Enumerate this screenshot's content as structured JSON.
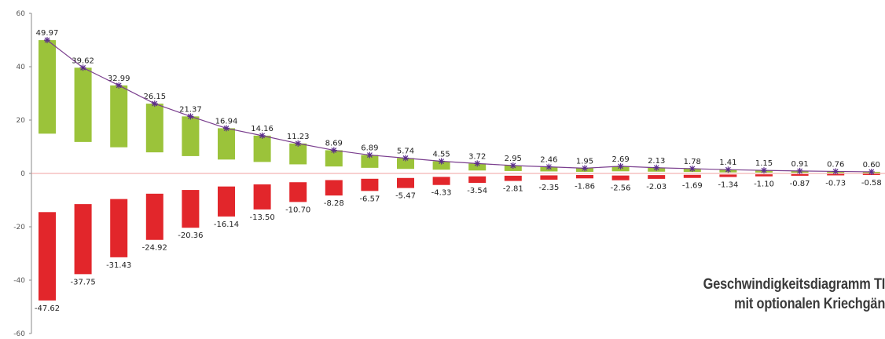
{
  "chart_data": {
    "type": "bar",
    "title_lines": [
      "Geschwindigkeitsdiagramm TI",
      "mit optionalen Kriechgän"
    ],
    "ylim": [
      -60,
      60
    ],
    "yticks": [
      60,
      40,
      20,
      0,
      -20,
      -40,
      -60
    ],
    "colors": {
      "positive": "#9bc33a",
      "negative": "#e2262b",
      "line": "#7a3e8e",
      "marker": "#5b2d8a"
    },
    "series": [
      {
        "name": "positive",
        "values": [
          49.97,
          39.62,
          32.99,
          26.15,
          21.37,
          16.94,
          14.16,
          11.23,
          8.69,
          6.89,
          5.74,
          4.55,
          3.72,
          2.95,
          2.46,
          1.95,
          2.69,
          2.13,
          1.78,
          1.41,
          1.15,
          0.91,
          0.76,
          0.6
        ],
        "labels": [
          "49.97",
          "39.62",
          "32.99",
          "26.15",
          "21.37",
          "16.94",
          "14.16",
          "11.23",
          "8.69",
          "6.89",
          "5.74",
          "4.55",
          "3.72",
          "2.95",
          "2.46",
          "1.95",
          "2.69",
          "2.13",
          "1.78",
          "1.41",
          "1.15",
          "0.91",
          "0.76",
          "0.60"
        ]
      },
      {
        "name": "negative",
        "values": [
          -47.62,
          -37.75,
          -31.43,
          -24.92,
          -20.36,
          -16.14,
          -13.5,
          -10.7,
          -8.28,
          -6.57,
          -5.47,
          -4.33,
          -3.54,
          -2.81,
          -2.35,
          -1.86,
          -2.56,
          -2.03,
          -1.69,
          -1.34,
          -1.1,
          -0.87,
          -0.73,
          -0.58
        ],
        "labels": [
          "-47.62",
          "-37.75",
          "-31.43",
          "-24.92",
          "-20.36",
          "-16.14",
          "-13.50",
          "-10.70",
          "-8.28",
          "-6.57",
          "-5.47",
          "-4.33",
          "-3.54",
          "-2.81",
          "-2.35",
          "-1.86",
          "-2.56",
          "-2.03",
          "-1.69",
          "-1.34",
          "-1.10",
          "-0.87",
          "-0.73",
          "-0.58"
        ]
      }
    ]
  }
}
